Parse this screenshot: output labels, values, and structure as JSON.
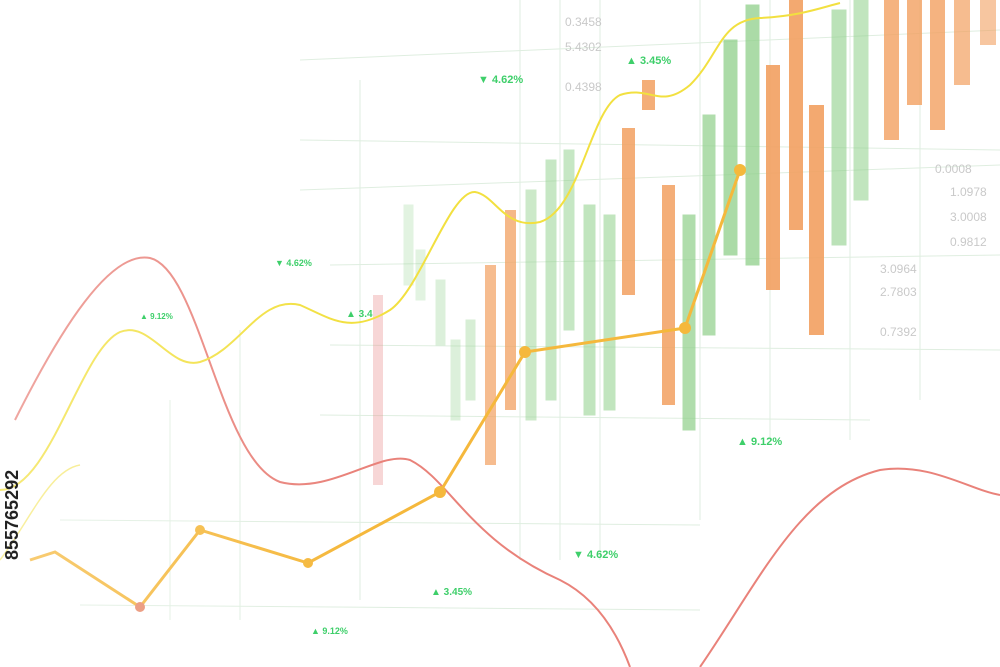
{
  "labels": [
    "▼ 4.62%",
    "▲ 3.45%",
    "▼ 4.62%",
    "▲ 3.4",
    "▲ 9.12%",
    "▲ 9.12%",
    "▼ 4.62%",
    "▲ 3.45%",
    "▲ 9.12%"
  ],
  "background_numbers": [
    "0.3458",
    "5.4302",
    "0.4398",
    "0.0008",
    "1.0978",
    "3.0008",
    "0.9812",
    "3.0964",
    "2.7803",
    "0.7392"
  ],
  "watermark_id": "855765292"
}
